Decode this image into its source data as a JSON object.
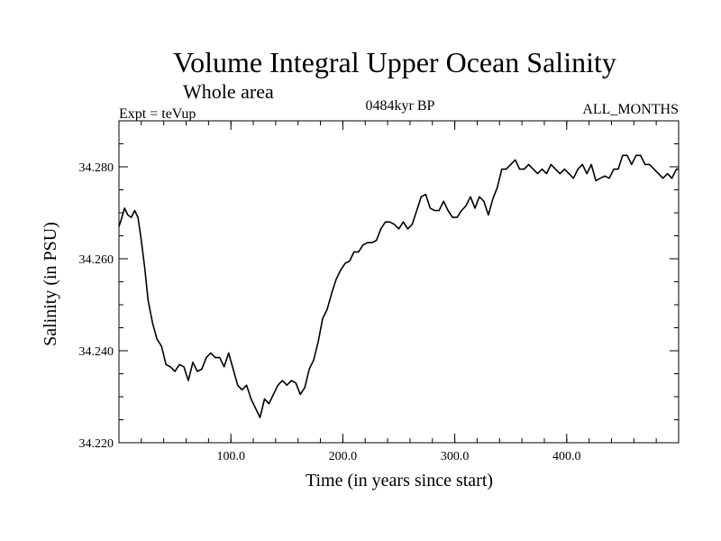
{
  "chart_data": {
    "type": "line",
    "title": "Volume Integral Upper Ocean Salinity",
    "subtitle": "Whole area",
    "header_left": "Expt = teVup",
    "header_center": "0484kyr BP",
    "header_right": "ALL_MONTHS",
    "xlabel": "Time (in years since start)",
    "ylabel": "Salinity (in PSU)",
    "xlim": [
      0,
      500
    ],
    "ylim": [
      34.22,
      34.29
    ],
    "xticks": [
      {
        "value": 100,
        "label": "100.0"
      },
      {
        "value": 200,
        "label": "200.0"
      },
      {
        "value": 300,
        "label": "300.0"
      },
      {
        "value": 400,
        "label": "400.0"
      }
    ],
    "yticks": [
      {
        "value": 34.22,
        "label": "34.220"
      },
      {
        "value": 34.24,
        "label": "34.240"
      },
      {
        "value": 34.26,
        "label": "34.260"
      },
      {
        "value": 34.28,
        "label": "34.280"
      }
    ],
    "grid": false,
    "series": [
      {
        "line_color": "#000000",
        "points": [
          [
            0,
            34.267
          ],
          [
            2,
            34.2685
          ],
          [
            5,
            34.271
          ],
          [
            8,
            34.2695
          ],
          [
            11,
            34.269
          ],
          [
            14,
            34.2705
          ],
          [
            17,
            34.269
          ],
          [
            20,
            34.264
          ],
          [
            23,
            34.258
          ],
          [
            26,
            34.251
          ],
          [
            30,
            34.246
          ],
          [
            34,
            34.2425
          ],
          [
            38,
            34.241
          ],
          [
            42,
            34.237
          ],
          [
            46,
            34.2365
          ],
          [
            50,
            34.2355
          ],
          [
            54,
            34.237
          ],
          [
            58,
            34.2365
          ],
          [
            62,
            34.2335
          ],
          [
            66,
            34.2375
          ],
          [
            70,
            34.2355
          ],
          [
            74,
            34.236
          ],
          [
            78,
            34.2385
          ],
          [
            82,
            34.2395
          ],
          [
            86,
            34.2385
          ],
          [
            90,
            34.2385
          ],
          [
            94,
            34.2365
          ],
          [
            98,
            34.2395
          ],
          [
            102,
            34.236
          ],
          [
            106,
            34.2325
          ],
          [
            110,
            34.2315
          ],
          [
            114,
            34.2325
          ],
          [
            118,
            34.2295
          ],
          [
            122,
            34.2275
          ],
          [
            126,
            34.2255
          ],
          [
            130,
            34.2295
          ],
          [
            134,
            34.2285
          ],
          [
            138,
            34.2305
          ],
          [
            142,
            34.2325
          ],
          [
            146,
            34.2335
          ],
          [
            150,
            34.2325
          ],
          [
            154,
            34.2335
          ],
          [
            158,
            34.233
          ],
          [
            162,
            34.2305
          ],
          [
            166,
            34.232
          ],
          [
            170,
            34.236
          ],
          [
            174,
            34.238
          ],
          [
            178,
            34.242
          ],
          [
            182,
            34.247
          ],
          [
            186,
            34.249
          ],
          [
            190,
            34.2525
          ],
          [
            194,
            34.2555
          ],
          [
            198,
            34.2575
          ],
          [
            202,
            34.259
          ],
          [
            206,
            34.2595
          ],
          [
            210,
            34.2615
          ],
          [
            214,
            34.2615
          ],
          [
            218,
            34.263
          ],
          [
            222,
            34.2635
          ],
          [
            226,
            34.2635
          ],
          [
            230,
            34.264
          ],
          [
            234,
            34.2665
          ],
          [
            238,
            34.268
          ],
          [
            242,
            34.268
          ],
          [
            246,
            34.2675
          ],
          [
            250,
            34.2665
          ],
          [
            254,
            34.268
          ],
          [
            258,
            34.2665
          ],
          [
            262,
            34.2675
          ],
          [
            266,
            34.2705
          ],
          [
            270,
            34.2735
          ],
          [
            274,
            34.274
          ],
          [
            278,
            34.271
          ],
          [
            282,
            34.2705
          ],
          [
            286,
            34.2705
          ],
          [
            290,
            34.2725
          ],
          [
            294,
            34.2705
          ],
          [
            298,
            34.269
          ],
          [
            302,
            34.269
          ],
          [
            306,
            34.2705
          ],
          [
            310,
            34.2715
          ],
          [
            314,
            34.2735
          ],
          [
            318,
            34.271
          ],
          [
            322,
            34.2735
          ],
          [
            326,
            34.2725
          ],
          [
            330,
            34.2695
          ],
          [
            334,
            34.273
          ],
          [
            338,
            34.2755
          ],
          [
            342,
            34.2795
          ],
          [
            346,
            34.2795
          ],
          [
            350,
            34.2805
          ],
          [
            354,
            34.2815
          ],
          [
            358,
            34.2795
          ],
          [
            362,
            34.2795
          ],
          [
            366,
            34.2805
          ],
          [
            370,
            34.2795
          ],
          [
            374,
            34.2785
          ],
          [
            378,
            34.2795
          ],
          [
            382,
            34.2785
          ],
          [
            386,
            34.2805
          ],
          [
            390,
            34.2795
          ],
          [
            394,
            34.2785
          ],
          [
            398,
            34.2795
          ],
          [
            402,
            34.2785
          ],
          [
            406,
            34.2775
          ],
          [
            410,
            34.2795
          ],
          [
            414,
            34.2805
          ],
          [
            418,
            34.2785
          ],
          [
            422,
            34.2805
          ],
          [
            426,
            34.277
          ],
          [
            430,
            34.2775
          ],
          [
            434,
            34.278
          ],
          [
            438,
            34.2775
          ],
          [
            442,
            34.2795
          ],
          [
            446,
            34.2795
          ],
          [
            450,
            34.2825
          ],
          [
            454,
            34.2825
          ],
          [
            458,
            34.2805
          ],
          [
            462,
            34.2825
          ],
          [
            466,
            34.2825
          ],
          [
            470,
            34.2805
          ],
          [
            474,
            34.2805
          ],
          [
            478,
            34.2795
          ],
          [
            482,
            34.2785
          ],
          [
            486,
            34.2775
          ],
          [
            490,
            34.2785
          ],
          [
            494,
            34.2775
          ],
          [
            498,
            34.2795
          ],
          [
            500,
            34.2795
          ]
        ]
      }
    ]
  }
}
